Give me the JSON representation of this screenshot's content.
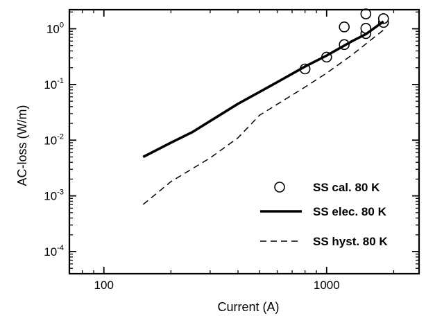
{
  "chart_data": {
    "type": "scatter",
    "xlabel": "Current (A)",
    "ylabel": "AC-loss (W/m)",
    "x_scale": "log",
    "y_scale": "log",
    "xlim": [
      70,
      2600
    ],
    "ylim": [
      4e-05,
      2.2
    ],
    "x_ticks": [
      {
        "value": 100,
        "label": "100"
      },
      {
        "value": 1000,
        "label": "1000"
      }
    ],
    "y_ticks": [
      {
        "value": 1,
        "base": "10",
        "exp": "0"
      },
      {
        "value": 0.1,
        "base": "10",
        "exp": "-1"
      },
      {
        "value": 0.01,
        "base": "10",
        "exp": "-2"
      },
      {
        "value": 0.001,
        "base": "10",
        "exp": "-3"
      },
      {
        "value": 0.0001,
        "base": "10",
        "exp": "-4"
      }
    ],
    "legend_position": "bottom-right",
    "series": [
      {
        "name": "SS cal. 80 K",
        "style": "open-circle",
        "x": [
          800,
          1000,
          1200,
          1200,
          1500,
          1500,
          1500,
          1800,
          1800
        ],
        "y": [
          0.19,
          0.31,
          0.52,
          1.08,
          0.82,
          1.02,
          1.85,
          1.3,
          1.52
        ]
      },
      {
        "name": "SS elec. 80 K",
        "style": "solid-thick",
        "x": [
          150,
          200,
          250,
          300,
          400,
          600,
          800,
          1000,
          1300,
          1500,
          1800
        ],
        "y": [
          0.005,
          0.009,
          0.014,
          0.022,
          0.045,
          0.11,
          0.21,
          0.33,
          0.6,
          0.8,
          1.35
        ]
      },
      {
        "name": "SS hyst. 80 K",
        "style": "dashed",
        "x": [
          150,
          200,
          300,
          400,
          500,
          800,
          1000,
          1300,
          1800
        ],
        "y": [
          0.0007,
          0.0018,
          0.0048,
          0.011,
          0.028,
          0.09,
          0.16,
          0.34,
          0.95
        ]
      }
    ]
  }
}
